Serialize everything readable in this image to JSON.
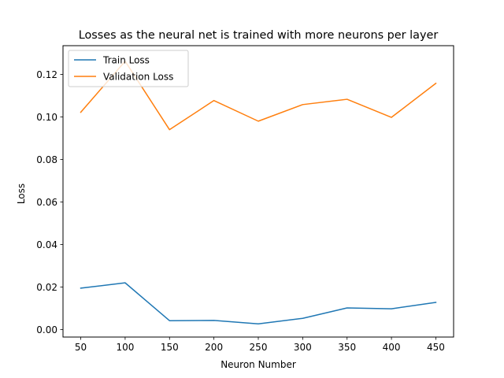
{
  "chart_data": {
    "type": "line",
    "title": "Losses as the neural net is trained with more neurons per layer",
    "xlabel": "Neuron Number",
    "ylabel": "Loss",
    "x": [
      50,
      100,
      150,
      200,
      250,
      300,
      350,
      400,
      450
    ],
    "x_ticks": [
      "50",
      "100",
      "150",
      "200",
      "250",
      "300",
      "350",
      "400",
      "450"
    ],
    "y_ticks": [
      "0.00",
      "0.02",
      "0.04",
      "0.06",
      "0.08",
      "0.10",
      "0.12"
    ],
    "xlim": [
      30,
      470
    ],
    "ylim": [
      -0.0035,
      0.1335
    ],
    "grid": false,
    "legend_position": "top-left",
    "series": [
      {
        "name": "Train Loss",
        "color": "#1f77b4",
        "values": [
          0.0195,
          0.022,
          0.0042,
          0.0043,
          0.0027,
          0.0053,
          0.0102,
          0.0098,
          0.0128
        ]
      },
      {
        "name": "Validation Loss",
        "color": "#ff7f0e",
        "values": [
          0.1022,
          0.1262,
          0.094,
          0.1077,
          0.098,
          0.1058,
          0.1083,
          0.0998,
          0.1158
        ]
      }
    ]
  }
}
